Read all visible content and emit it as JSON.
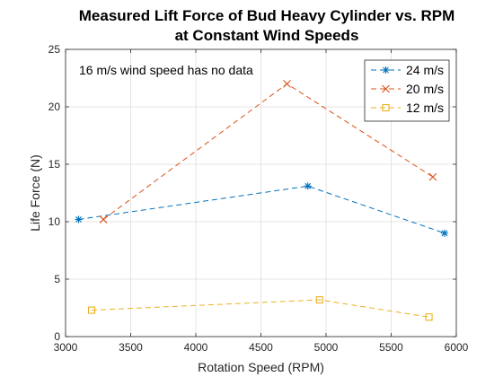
{
  "chart_data": {
    "type": "line",
    "title_lines": [
      "Measured Lift Force of Bud Heavy Cylinder vs. RPM",
      "at Constant Wind Speeds"
    ],
    "xlabel": "Rotation Speed (RPM)",
    "ylabel": "Life Force (N)",
    "xlim": [
      3000,
      6000
    ],
    "ylim": [
      0,
      25
    ],
    "xticks": [
      3000,
      3500,
      4000,
      4500,
      5000,
      5500,
      6000
    ],
    "yticks": [
      0,
      5,
      10,
      15,
      20,
      25
    ],
    "grid": true,
    "legend_position": "top-right",
    "annotation": "16 m/s wind speed has no data",
    "series": [
      {
        "name": "24 m/s",
        "color": "#0072BD",
        "marker": "asterisk",
        "x": [
          3100,
          4860,
          5910
        ],
        "y": [
          10.2,
          13.1,
          9.0
        ]
      },
      {
        "name": "20 m/s",
        "color": "#D95319",
        "marker": "x",
        "x": [
          3290,
          4700,
          5820
        ],
        "y": [
          10.2,
          22.0,
          13.9
        ]
      },
      {
        "name": "12 m/s",
        "color": "#EDB120",
        "marker": "square",
        "x": [
          3200,
          4950,
          5790
        ],
        "y": [
          2.3,
          3.2,
          1.7
        ]
      }
    ]
  }
}
